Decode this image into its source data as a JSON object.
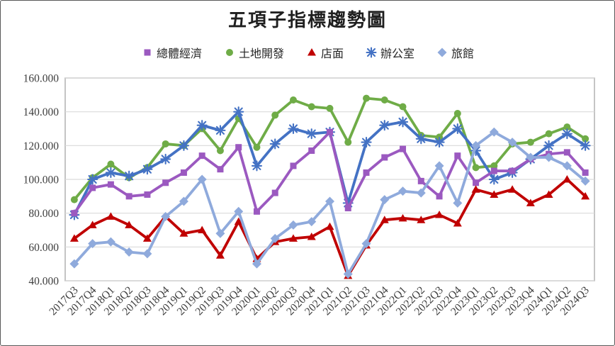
{
  "title": "五項子指標趨勢圖",
  "chart_data": {
    "type": "line",
    "title": "五項子指標趨勢圖",
    "legend_position": "top",
    "grid": true,
    "ylim": [
      40,
      160
    ],
    "y_ticks": [
      {
        "value": 160,
        "label": "160.000"
      },
      {
        "value": 140,
        "label": "140.000"
      },
      {
        "value": 120,
        "label": "120.000"
      },
      {
        "value": 100,
        "label": "100.000"
      },
      {
        "value": 80,
        "label": "80.000"
      },
      {
        "value": 60,
        "label": "60.000"
      },
      {
        "value": 40,
        "label": "40.000"
      }
    ],
    "categories": [
      "2017Q3",
      "2017Q4",
      "2018Q1",
      "2018Q2",
      "2018Q3",
      "2018Q4",
      "2019Q1",
      "2019Q2",
      "2019Q3",
      "2019Q4",
      "2020Q1",
      "2020Q2",
      "2020Q3",
      "2020Q4",
      "2021Q1",
      "2021Q2",
      "2021Q3",
      "2021Q4",
      "2022Q1",
      "2022Q2",
      "2022Q3",
      "2022Q4",
      "2023Q1",
      "2023Q2",
      "2023Q3",
      "2023Q4",
      "2024Q1",
      "2024Q2",
      "2024Q3"
    ],
    "series": [
      {
        "id": "overall-economy",
        "name": "總體經濟",
        "marker": "square",
        "color": "#9B59C0",
        "values": [
          80,
          95,
          97,
          90,
          91,
          98,
          104,
          114,
          106,
          119,
          81,
          92,
          108,
          117,
          128,
          83,
          104,
          113,
          118,
          99,
          90,
          114,
          98,
          105,
          105,
          112,
          115,
          116,
          104
        ]
      },
      {
        "id": "land-development",
        "name": "土地開發",
        "marker": "circle",
        "color": "#6FAC47",
        "values": [
          88,
          101,
          109,
          101,
          107,
          121,
          120,
          130,
          117,
          136,
          119,
          138,
          147,
          143,
          142,
          122,
          148,
          147,
          143,
          126,
          125,
          139,
          107,
          108,
          121,
          122,
          127,
          131,
          124
        ]
      },
      {
        "id": "storefront",
        "name": "店面",
        "marker": "triangle",
        "color": "#C00000",
        "values": [
          65,
          73,
          78,
          73,
          65,
          78,
          68,
          70,
          55,
          75,
          53,
          63,
          65,
          66,
          72,
          43,
          61,
          76,
          77,
          76,
          79,
          74,
          94,
          91,
          94,
          86,
          91,
          100,
          90
        ]
      },
      {
        "id": "office",
        "name": "辦公室",
        "marker": "star",
        "color": "#4472C4",
        "values": [
          79,
          100,
          104,
          102,
          106,
          112,
          120,
          132,
          129,
          140,
          108,
          121,
          130,
          127,
          128,
          86,
          122,
          132,
          134,
          124,
          122,
          130,
          117,
          100,
          104,
          112,
          120,
          127,
          120
        ]
      },
      {
        "id": "hotel",
        "name": "旅館",
        "marker": "diamond",
        "color": "#8FAADC",
        "values": [
          50,
          62,
          63,
          57,
          56,
          78,
          87,
          100,
          68,
          81,
          50,
          65,
          73,
          75,
          87,
          44,
          62,
          88,
          93,
          92,
          108,
          86,
          120,
          128,
          122,
          113,
          113,
          108,
          99
        ]
      }
    ]
  }
}
